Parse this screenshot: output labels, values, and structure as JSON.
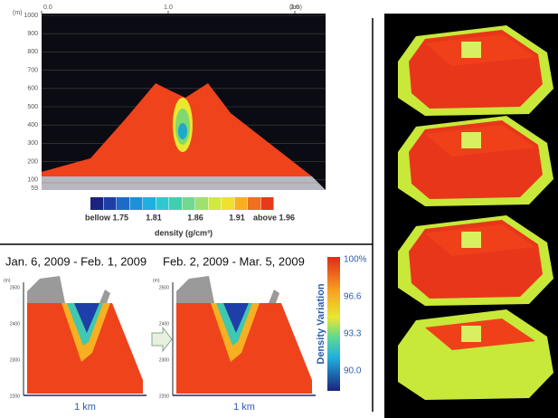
{
  "top_panel": {
    "y_unit": "(m)",
    "x_unit": "(km)",
    "x_ticks": [
      "0.0",
      "1.0",
      "2.0"
    ],
    "y_ticks": [
      "1000",
      "900",
      "800",
      "700",
      "600",
      "500",
      "400",
      "300",
      "200",
      "100",
      "59"
    ],
    "colorbar_labels": [
      "bellow 1.75",
      "1.81",
      "1.86",
      "1.91",
      "above 1.96"
    ],
    "colorbar_title": "density (g/cm³)"
  },
  "bottom_panel": {
    "periods": [
      {
        "title": "Jan. 6, 2009 - Feb. 1, 2009",
        "y_unit": "(m)",
        "y_ticks": [
          "2500",
          "2400",
          "2300",
          "2200"
        ],
        "scale": "1 km"
      },
      {
        "title": "Feb. 2, 2009 - Mar. 5, 2009",
        "y_unit": "(m)",
        "y_ticks": [
          "2500",
          "2400",
          "2300",
          "2200"
        ],
        "scale": "1 km"
      }
    ],
    "colorbar_title": "Density Variation",
    "colorbar_labels": [
      "100%",
      "96.6",
      "93.3",
      "90.0"
    ]
  }
}
